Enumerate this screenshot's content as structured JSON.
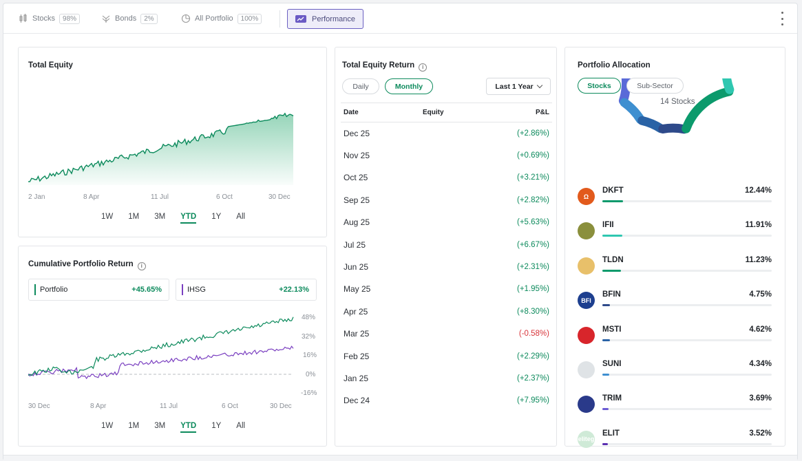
{
  "topbar": {
    "tabs": [
      {
        "label": "Stocks",
        "badge": "98%",
        "icon": "stocks-icon"
      },
      {
        "label": "Bonds",
        "badge": "2%",
        "icon": "bonds-icon"
      },
      {
        "label": "All Portfolio",
        "badge": "100%",
        "icon": "pie-icon"
      }
    ],
    "performance_label": "Performance",
    "accent": "#6b5bc4"
  },
  "total_equity": {
    "title": "Total Equity",
    "x_labels": [
      "2 Jan",
      "8 Apr",
      "11 Jul",
      "6 Oct",
      "30 Dec"
    ],
    "ranges": [
      "1W",
      "1M",
      "3M",
      "YTD",
      "1Y",
      "All"
    ],
    "active_range": "YTD"
  },
  "cumulative": {
    "title": "Cumulative Portfolio Return",
    "legend": [
      {
        "name": "Portfolio",
        "value": "+45.65%",
        "color": "#0c8a5c"
      },
      {
        "name": "IHSG",
        "value": "+22.13%",
        "color": "#7a3fc0"
      }
    ],
    "x_labels": [
      "30 Dec",
      "8 Apr",
      "11 Jul",
      "6 Oct",
      "30 Dec"
    ],
    "y_labels": [
      "48%",
      "32%",
      "16%",
      "0%",
      "-16%"
    ],
    "ranges": [
      "1W",
      "1M",
      "3M",
      "YTD",
      "1Y",
      "All"
    ],
    "active_range": "YTD"
  },
  "equity_return": {
    "title": "Total Equity Return",
    "modes": [
      "Daily",
      "Monthly"
    ],
    "active_mode": "Monthly",
    "period": "Last 1 Year",
    "columns": [
      "Date",
      "Equity",
      "P&L"
    ],
    "rows": [
      {
        "date": "Dec 25",
        "pl": "(+2.86%)",
        "neg": false
      },
      {
        "date": "Nov 25",
        "pl": "(+0.69%)",
        "neg": false
      },
      {
        "date": "Oct 25",
        "pl": "(+3.21%)",
        "neg": false
      },
      {
        "date": "Sep 25",
        "pl": "(+2.82%)",
        "neg": false
      },
      {
        "date": "Aug 25",
        "pl": "(+5.63%)",
        "neg": false
      },
      {
        "date": "Jul 25",
        "pl": "(+6.67%)",
        "neg": false
      },
      {
        "date": "Jun 25",
        "pl": "(+2.31%)",
        "neg": false
      },
      {
        "date": "May 25",
        "pl": "(+1.95%)",
        "neg": false
      },
      {
        "date": "Apr 25",
        "pl": "(+8.30%)",
        "neg": false
      },
      {
        "date": "Mar 25",
        "pl": "(-0.58%)",
        "neg": true
      },
      {
        "date": "Feb 25",
        "pl": "(+2.29%)",
        "neg": false
      },
      {
        "date": "Jan 25",
        "pl": "(+2.37%)",
        "neg": false
      },
      {
        "date": "Dec 24",
        "pl": "(+7.95%)",
        "neg": false
      }
    ]
  },
  "allocation": {
    "title": "Portfolio Allocation",
    "tabs": [
      "Stocks",
      "Sub-Sector"
    ],
    "active_tab": "Stocks",
    "center_label": "14 Stocks",
    "stocks": [
      {
        "ticker": "DKFT",
        "pct": "12.44%",
        "value": 12.44,
        "bar_color": "#0c9a6c",
        "logo_color": "#e25a1c"
      },
      {
        "ticker": "IFII",
        "pct": "11.91%",
        "value": 11.91,
        "bar_color": "#2fc7b0",
        "logo_color": "#8a8f3c"
      },
      {
        "ticker": "TLDN",
        "pct": "11.23%",
        "value": 11.23,
        "bar_color": "#0c9a6c",
        "logo_color": "#e8c06a"
      },
      {
        "ticker": "BFIN",
        "pct": "4.75%",
        "value": 4.75,
        "bar_color": "#2e4a8a",
        "logo_color": "#1d3f8f"
      },
      {
        "ticker": "MSTI",
        "pct": "4.62%",
        "value": 4.62,
        "bar_color": "#2a63a6",
        "logo_color": "#d8252b"
      },
      {
        "ticker": "SUNI",
        "pct": "4.34%",
        "value": 4.34,
        "bar_color": "#3e8fd0",
        "logo_color": "#dfe3e6"
      },
      {
        "ticker": "TRIM",
        "pct": "3.69%",
        "value": 3.69,
        "bar_color": "#6b5bd4",
        "logo_color": "#2a3a8a"
      },
      {
        "ticker": "ELIT",
        "pct": "3.52%",
        "value": 3.52,
        "bar_color": "#5a2fb0",
        "logo_color": "#cfead7"
      }
    ],
    "logo_text": {
      "DKFT": "Ω",
      "BFIN": "BFI",
      "ELIT": "eliteg"
    }
  }
}
